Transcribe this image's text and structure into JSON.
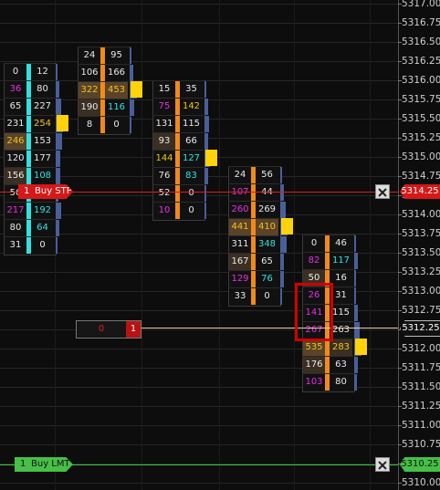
{
  "colors": {
    "background": "#0d0d0d",
    "bid_cell": "#0e0e0e",
    "ask_cell": "#141414",
    "volume_bar": "#4a5f99",
    "poc_marker": "#ffd20a",
    "stop_line": "#e21b1b",
    "limit_line": "#3dc83d",
    "last_price_line": "#e6d1a1",
    "highlight_box": "#d10000",
    "magenta_text": "#e62ee6",
    "cyan_text": "#33e0e0",
    "yellow_text": "#f0c419"
  },
  "price_axis": {
    "ticks": [
      "5317.00",
      "5316.75",
      "5316.50",
      "5316.25",
      "5316.00",
      "5315.75",
      "5315.50",
      "5315.25",
      "5315.00",
      "5314.75",
      "5314.50",
      "5314.00",
      "5313.75",
      "5313.50",
      "5313.25",
      "5313.00",
      "5312.75",
      "5312.50",
      "5312.00",
      "5311.75",
      "5311.50",
      "5311.25",
      "5311.00",
      "5310.75",
      "5310.50",
      "5310.00"
    ]
  },
  "last_price": "5312.25",
  "position": {
    "left_value": "0",
    "right_value": "1"
  },
  "orders": {
    "stop": {
      "qty": "1",
      "label": "Buy STP",
      "price": "5314.25",
      "close_icon": "close-x-icon"
    },
    "limit": {
      "qty": "1",
      "label": "Buy LMT",
      "price": "5310.25",
      "close_icon": "close-x-icon"
    }
  },
  "clusters": [
    {
      "rows": [
        {
          "bid": "0",
          "ask": "12",
          "bid_color": "w",
          "ask_color": "w",
          "bid_shade": 0,
          "ask_shade": 0,
          "bar": 8
        },
        {
          "bid": "36",
          "ask": "80",
          "bid_color": "m",
          "ask_color": "w",
          "bid_shade": 0,
          "ask_shade": 0,
          "bar": 14
        },
        {
          "bid": "65",
          "ask": "227",
          "bid_color": "w",
          "ask_color": "w",
          "bid_shade": 0,
          "ask_shade": 0,
          "bar": 20
        },
        {
          "bid": "231",
          "ask": "254",
          "bid_color": "w",
          "ask_color": "y",
          "bid_shade": 0,
          "ask_shade": 0,
          "bar": 26
        },
        {
          "bid": "246",
          "ask": "153",
          "bid_color": "y",
          "ask_color": "w",
          "bid_shade": 2,
          "ask_shade": 0,
          "bar": 22
        },
        {
          "bid": "120",
          "ask": "177",
          "bid_color": "w",
          "ask_color": "w",
          "bid_shade": 0,
          "ask_shade": 0,
          "bar": 16
        },
        {
          "bid": "156",
          "ask": "108",
          "bid_color": "w",
          "ask_color": "c",
          "bid_shade": 1,
          "ask_shade": 0,
          "bar": 15
        },
        {
          "bid": "56",
          "ask": "",
          "bid_color": "w",
          "ask_color": "w",
          "bid_shade": 0,
          "ask_shade": 0,
          "bar": 10
        },
        {
          "bid": "217",
          "ask": "192",
          "bid_color": "m",
          "ask_color": "c",
          "bid_shade": 0,
          "ask_shade": 0,
          "bar": 20
        },
        {
          "bid": "80",
          "ask": "64",
          "bid_color": "w",
          "ask_color": "c",
          "bid_shade": 0,
          "ask_shade": 0,
          "bar": 12
        },
        {
          "bid": "31",
          "ask": "0",
          "bid_color": "w",
          "ask_color": "w",
          "bid_shade": 0,
          "ask_shade": 0,
          "bar": 6
        }
      ],
      "poc_row": 3
    },
    {
      "rows": [
        {
          "bid": "24",
          "ask": "95",
          "bid_color": "w",
          "ask_color": "w",
          "bid_shade": 0,
          "ask_shade": 0,
          "bar": 8
        },
        {
          "bid": "106",
          "ask": "166",
          "bid_color": "w",
          "ask_color": "w",
          "bid_shade": 0,
          "ask_shade": 0,
          "bar": 14
        },
        {
          "bid": "322",
          "ask": "453",
          "bid_color": "y",
          "ask_color": "y",
          "bid_shade": 2,
          "ask_shade": 2,
          "bar": 26
        },
        {
          "bid": "190",
          "ask": "116",
          "bid_color": "w",
          "ask_color": "c",
          "bid_shade": 1,
          "ask_shade": 0,
          "bar": 16
        },
        {
          "bid": "8",
          "ask": "0",
          "bid_color": "w",
          "ask_color": "w",
          "bid_shade": 0,
          "ask_shade": 0,
          "bar": 5
        }
      ],
      "poc_row": 2
    },
    {
      "rows": [
        {
          "bid": "15",
          "ask": "35",
          "bid_color": "w",
          "ask_color": "w",
          "bid_shade": 0,
          "ask_shade": 0,
          "bar": 8
        },
        {
          "bid": "75",
          "ask": "142",
          "bid_color": "m",
          "ask_color": "y",
          "bid_shade": 0,
          "ask_shade": 0,
          "bar": 14
        },
        {
          "bid": "131",
          "ask": "115",
          "bid_color": "w",
          "ask_color": "w",
          "bid_shade": 0,
          "ask_shade": 0,
          "bar": 16
        },
        {
          "bid": "93",
          "ask": "66",
          "bid_color": "w",
          "ask_color": "w",
          "bid_shade": 1,
          "ask_shade": 0,
          "bar": 12
        },
        {
          "bid": "144",
          "ask": "127",
          "bid_color": "y",
          "ask_color": "c",
          "bid_shade": 0,
          "ask_shade": 0,
          "bar": 20
        },
        {
          "bid": "76",
          "ask": "83",
          "bid_color": "w",
          "ask_color": "c",
          "bid_shade": 0,
          "ask_shade": 0,
          "bar": 14
        },
        {
          "bid": "52",
          "ask": "0",
          "bid_color": "w",
          "ask_color": "w",
          "bid_shade": 0,
          "ask_shade": 0,
          "bar": 8
        },
        {
          "bid": "10",
          "ask": "0",
          "bid_color": "m",
          "ask_color": "w",
          "bid_shade": 0,
          "ask_shade": 0,
          "bar": 5
        }
      ],
      "poc_row": 4
    },
    {
      "rows": [
        {
          "bid": "24",
          "ask": "56",
          "bid_color": "w",
          "ask_color": "w",
          "bid_shade": 0,
          "ask_shade": 0,
          "bar": 8
        },
        {
          "bid": "107",
          "ask": "44",
          "bid_color": "m",
          "ask_color": "w",
          "bid_shade": 0,
          "ask_shade": 0,
          "bar": 12
        },
        {
          "bid": "260",
          "ask": "269",
          "bid_color": "m",
          "ask_color": "w",
          "bid_shade": 0,
          "ask_shade": 0,
          "bar": 20
        },
        {
          "bid": "441",
          "ask": "410",
          "bid_color": "y",
          "ask_color": "y",
          "bid_shade": 2,
          "ask_shade": 2,
          "bar": 28
        },
        {
          "bid": "311",
          "ask": "348",
          "bid_color": "w",
          "ask_color": "c",
          "bid_shade": 0,
          "ask_shade": 0,
          "bar": 22
        },
        {
          "bid": "167",
          "ask": "65",
          "bid_color": "w",
          "ask_color": "w",
          "bid_shade": 1,
          "ask_shade": 0,
          "bar": 14
        },
        {
          "bid": "129",
          "ask": "76",
          "bid_color": "m",
          "ask_color": "c",
          "bid_shade": 0,
          "ask_shade": 0,
          "bar": 12
        },
        {
          "bid": "33",
          "ask": "0",
          "bid_color": "w",
          "ask_color": "w",
          "bid_shade": 0,
          "ask_shade": 0,
          "bar": 6
        }
      ],
      "poc_row": 3
    },
    {
      "rows": [
        {
          "bid": "0",
          "ask": "46",
          "bid_color": "w",
          "ask_color": "w",
          "bid_shade": 0,
          "ask_shade": 0,
          "bar": 8
        },
        {
          "bid": "82",
          "ask": "117",
          "bid_color": "m",
          "ask_color": "c",
          "bid_shade": 0,
          "ask_shade": 0,
          "bar": 12
        },
        {
          "bid": "50",
          "ask": "16",
          "bid_color": "w",
          "ask_color": "w",
          "bid_shade": 1,
          "ask_shade": 0,
          "bar": 8
        },
        {
          "bid": "26",
          "ask": "31",
          "bid_color": "m",
          "ask_color": "w",
          "bid_shade": 0,
          "ask_shade": 0,
          "bar": 8
        },
        {
          "bid": "141",
          "ask": "115",
          "bid_color": "m",
          "ask_color": "w",
          "bid_shade": 0,
          "ask_shade": 0,
          "bar": 14
        },
        {
          "bid": "267",
          "ask": "263",
          "bid_color": "m",
          "ask_color": "w",
          "bid_shade": 0,
          "ask_shade": 0,
          "bar": 20
        },
        {
          "bid": "535",
          "ask": "283",
          "bid_color": "y",
          "ask_color": "y",
          "bid_shade": 2,
          "ask_shade": 1,
          "bar": 28
        },
        {
          "bid": "176",
          "ask": "63",
          "bid_color": "w",
          "ask_color": "w",
          "bid_shade": 1,
          "ask_shade": 0,
          "bar": 12
        },
        {
          "bid": "103",
          "ask": "80",
          "bid_color": "m",
          "ask_color": "w",
          "bid_shade": 0,
          "ask_shade": 0,
          "bar": 10
        }
      ],
      "poc_row": 6
    }
  ]
}
